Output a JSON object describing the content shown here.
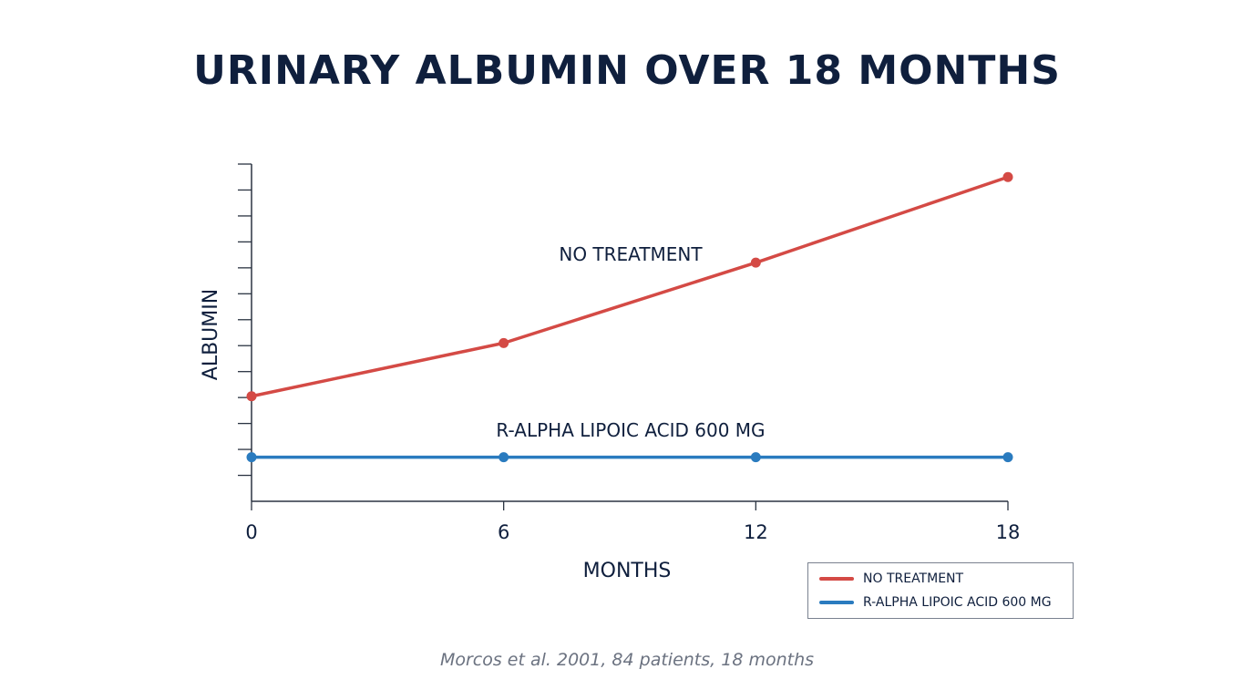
{
  "chart_data": {
    "type": "line",
    "title": "URINARY ALBUMIN OVER 18 MONTHS",
    "xlabel": "MONTHS",
    "ylabel": "ALBUMIN",
    "x": [
      0,
      6,
      12,
      18
    ],
    "x_tick_labels": [
      "0",
      "6",
      "12",
      "18"
    ],
    "xlim": [
      0,
      18
    ],
    "ylim": [
      0,
      13
    ],
    "y_ticks": [
      1,
      2,
      3,
      4,
      5,
      6,
      7,
      8,
      9,
      10,
      11,
      12,
      13
    ],
    "grid": false,
    "legend": "bottom-right",
    "series": [
      {
        "name": "NO TREATMENT",
        "color": "#d44a45",
        "values": [
          4.05,
          6.1,
          9.2,
          12.5
        ],
        "label": "NO TREATMENT"
      },
      {
        "name": "R-ALPHA LIPOIC ACID 600 MG",
        "color": "#2a7bbf",
        "values": [
          1.7,
          1.7,
          1.7,
          1.7
        ],
        "label": "R-ALPHA LIPOIC ACID 600 MG"
      }
    ]
  },
  "source_note": "Morcos et al. 2001, 84 patients, 18 months"
}
